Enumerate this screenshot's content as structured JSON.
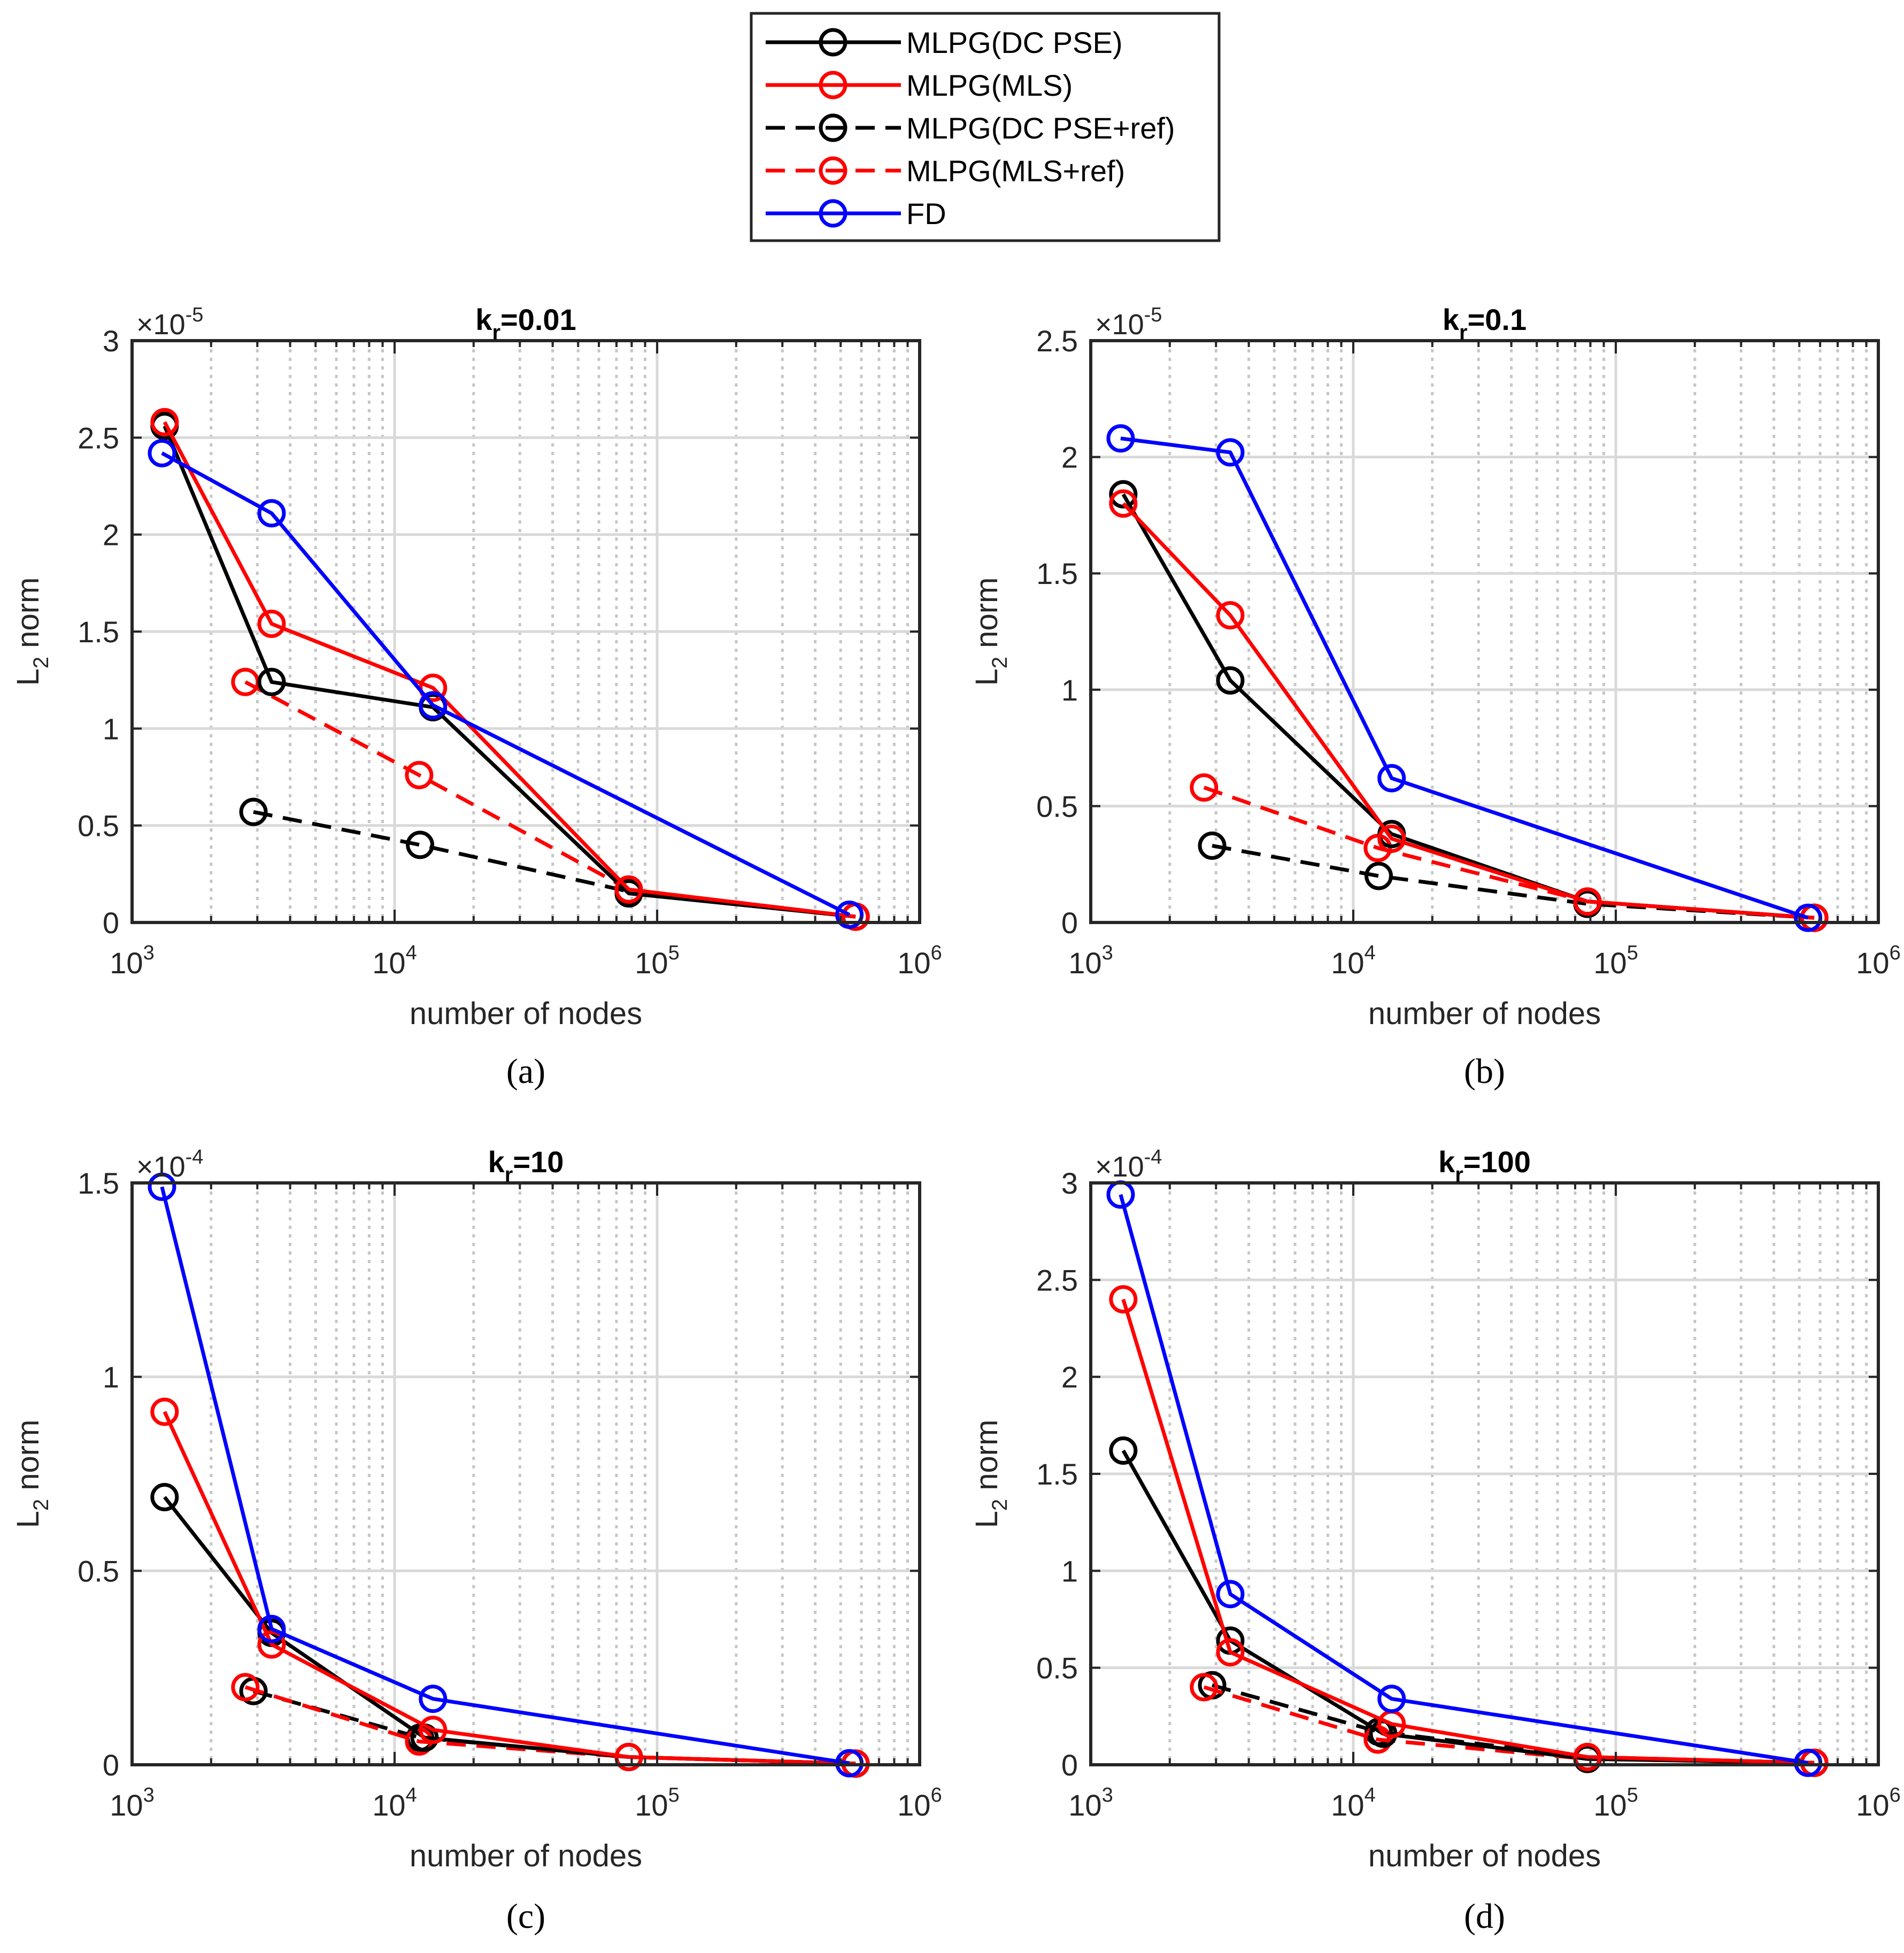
{
  "legend": {
    "entries": [
      {
        "label": "MLPG(DC PSE)",
        "color": "#000000",
        "dashed": false
      },
      {
        "label": "MLPG(MLS)",
        "color": "#ff0000",
        "dashed": false
      },
      {
        "label": "MLPG(DC PSE+ref)",
        "color": "#000000",
        "dashed": true
      },
      {
        "label": "MLPG(MLS+ref)",
        "color": "#ff0000",
        "dashed": true
      },
      {
        "label": "FD",
        "color": "#0000ff",
        "dashed": false
      }
    ]
  },
  "chart_data": [
    {
      "type": "line",
      "xscale": "log",
      "title_main": "k",
      "title_sub": "r",
      "title_rest": "=0.01",
      "caption": "(a)",
      "xlabel": "number of nodes",
      "ylabel_main": "L",
      "ylabel_sub": "2",
      "ylabel_rest": " norm",
      "multiplier_base": "×10",
      "multiplier_exp": "-5",
      "xlim": [
        1000,
        1000000
      ],
      "xtick_labels": [
        {
          "base": "10",
          "exp": "3"
        },
        {
          "base": "10",
          "exp": "4"
        },
        {
          "base": "10",
          "exp": "5"
        },
        {
          "base": "10",
          "exp": "6"
        }
      ],
      "ylim": [
        0,
        3
      ],
      "yticks": [
        0,
        0.5,
        1,
        1.5,
        2,
        2.5,
        3
      ],
      "ytick_labels": [
        "0",
        "0.5",
        "1",
        "1.5",
        "2",
        "2.5",
        "3"
      ],
      "series": [
        {
          "name": "MLPG(DC PSE)",
          "x": [
            1330,
            3400,
            14000,
            78000,
            570000
          ],
          "y": [
            2.56,
            1.24,
            1.11,
            0.15,
            0.03
          ]
        },
        {
          "name": "MLPG(MLS)",
          "x": [
            1330,
            3400,
            14000,
            78000,
            570000
          ],
          "y": [
            2.58,
            1.54,
            1.21,
            0.17,
            0.03
          ]
        },
        {
          "name": "MLPG(DC PSE+ref)",
          "x": [
            2900,
            12500,
            78000,
            570000
          ],
          "y": [
            0.57,
            0.4,
            0.16,
            0.03
          ]
        },
        {
          "name": "MLPG(MLS+ref)",
          "x": [
            2700,
            12400,
            78000,
            570000
          ],
          "y": [
            1.24,
            0.76,
            0.17,
            0.03
          ]
        },
        {
          "name": "FD",
          "x": [
            1300,
            3400,
            14000,
            540000
          ],
          "y": [
            2.42,
            2.11,
            1.12,
            0.04
          ]
        }
      ]
    },
    {
      "type": "line",
      "xscale": "log",
      "title_main": "k",
      "title_sub": "r",
      "title_rest": "=0.1",
      "caption": "(b)",
      "xlabel": "number of nodes",
      "ylabel_main": "L",
      "ylabel_sub": "2",
      "ylabel_rest": " norm",
      "multiplier_base": "×10",
      "multiplier_exp": "-5",
      "xlim": [
        1000,
        1000000
      ],
      "xtick_labels": [
        {
          "base": "10",
          "exp": "3"
        },
        {
          "base": "10",
          "exp": "4"
        },
        {
          "base": "10",
          "exp": "5"
        },
        {
          "base": "10",
          "exp": "6"
        }
      ],
      "ylim": [
        0,
        2.5
      ],
      "yticks": [
        0,
        0.5,
        1,
        1.5,
        2,
        2.5
      ],
      "ytick_labels": [
        "0",
        "0.5",
        "1",
        "1.5",
        "2",
        "2.5"
      ],
      "series": [
        {
          "name": "MLPG(DC PSE)",
          "x": [
            1330,
            3400,
            14000,
            78000,
            570000
          ],
          "y": [
            1.84,
            1.04,
            0.38,
            0.09,
            0.02
          ]
        },
        {
          "name": "MLPG(MLS)",
          "x": [
            1330,
            3400,
            14000,
            78000,
            570000
          ],
          "y": [
            1.8,
            1.32,
            0.36,
            0.09,
            0.02
          ]
        },
        {
          "name": "MLPG(DC PSE+ref)",
          "x": [
            2900,
            12500,
            78000,
            570000
          ],
          "y": [
            0.33,
            0.2,
            0.08,
            0.02
          ]
        },
        {
          "name": "MLPG(MLS+ref)",
          "x": [
            2700,
            12400,
            78000,
            570000
          ],
          "y": [
            0.58,
            0.32,
            0.09,
            0.02
          ]
        },
        {
          "name": "FD",
          "x": [
            1300,
            3400,
            14000,
            540000
          ],
          "y": [
            2.08,
            2.02,
            0.62,
            0.02
          ]
        }
      ]
    },
    {
      "type": "line",
      "xscale": "log",
      "title_main": "k",
      "title_sub": "r",
      "title_rest": "=10",
      "caption": "(c)",
      "xlabel": "number of nodes",
      "ylabel_main": "L",
      "ylabel_sub": "2",
      "ylabel_rest": " norm",
      "multiplier_base": "×10",
      "multiplier_exp": "-4",
      "xlim": [
        1000,
        1000000
      ],
      "xtick_labels": [
        {
          "base": "10",
          "exp": "3"
        },
        {
          "base": "10",
          "exp": "4"
        },
        {
          "base": "10",
          "exp": "5"
        },
        {
          "base": "10",
          "exp": "6"
        }
      ],
      "ylim": [
        0,
        1.5
      ],
      "yticks": [
        0,
        0.5,
        1,
        1.5
      ],
      "ytick_labels": [
        "0",
        "0.5",
        "1",
        "1.5"
      ],
      "series": [
        {
          "name": "MLPG(DC PSE)",
          "x": [
            1330,
            3400,
            13000,
            78000,
            570000
          ],
          "y": [
            0.69,
            0.34,
            0.07,
            0.02,
            0.003
          ]
        },
        {
          "name": "MLPG(MLS)",
          "x": [
            1330,
            3400,
            14000,
            78000,
            570000
          ],
          "y": [
            0.91,
            0.31,
            0.09,
            0.02,
            0.003
          ]
        },
        {
          "name": "MLPG(DC PSE+ref)",
          "x": [
            2900,
            12500,
            78000,
            570000
          ],
          "y": [
            0.19,
            0.07,
            0.02,
            0.003
          ]
        },
        {
          "name": "MLPG(MLS+ref)",
          "x": [
            2700,
            12400,
            78000,
            570000
          ],
          "y": [
            0.2,
            0.06,
            0.02,
            0.003
          ]
        },
        {
          "name": "FD",
          "x": [
            1300,
            3400,
            14000,
            540000
          ],
          "y": [
            1.49,
            0.35,
            0.17,
            0.004
          ]
        }
      ]
    },
    {
      "type": "line",
      "xscale": "log",
      "title_main": "k",
      "title_sub": "r",
      "title_rest": "=100",
      "caption": "(d)",
      "xlabel": "number of nodes",
      "ylabel_main": "L",
      "ylabel_sub": "2",
      "ylabel_rest": " norm",
      "multiplier_base": "×10",
      "multiplier_exp": "-4",
      "xlim": [
        1000,
        1000000
      ],
      "xtick_labels": [
        {
          "base": "10",
          "exp": "3"
        },
        {
          "base": "10",
          "exp": "4"
        },
        {
          "base": "10",
          "exp": "5"
        },
        {
          "base": "10",
          "exp": "6"
        }
      ],
      "ylim": [
        0,
        3
      ],
      "yticks": [
        0,
        0.5,
        1,
        1.5,
        2,
        2.5,
        3
      ],
      "ytick_labels": [
        "0",
        "0.5",
        "1",
        "1.5",
        "2",
        "2.5",
        "3"
      ],
      "series": [
        {
          "name": "MLPG(DC PSE)",
          "x": [
            1330,
            3400,
            13000,
            78000,
            570000
          ],
          "y": [
            1.62,
            0.64,
            0.16,
            0.03,
            0.01
          ]
        },
        {
          "name": "MLPG(MLS)",
          "x": [
            1330,
            3400,
            14000,
            78000,
            570000
          ],
          "y": [
            2.4,
            0.58,
            0.21,
            0.04,
            0.01
          ]
        },
        {
          "name": "MLPG(DC PSE+ref)",
          "x": [
            2900,
            12500,
            78000,
            570000
          ],
          "y": [
            0.41,
            0.17,
            0.04,
            0.01
          ]
        },
        {
          "name": "MLPG(MLS+ref)",
          "x": [
            2700,
            12400,
            78000,
            570000
          ],
          "y": [
            0.4,
            0.13,
            0.03,
            0.01
          ]
        },
        {
          "name": "FD",
          "x": [
            1300,
            3400,
            14000,
            540000
          ],
          "y": [
            2.94,
            0.88,
            0.34,
            0.01
          ]
        }
      ]
    }
  ]
}
